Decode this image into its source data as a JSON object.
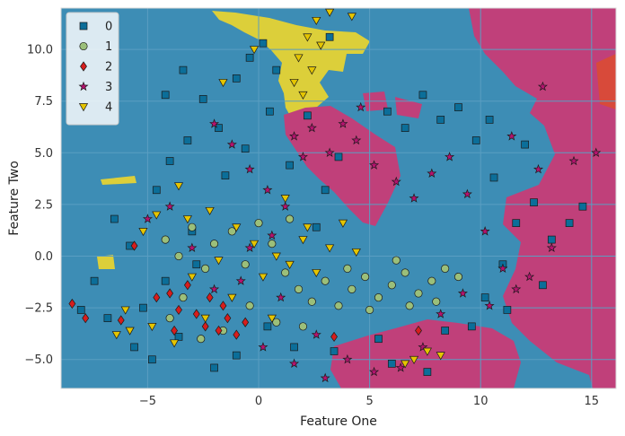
{
  "chart_data": {
    "type": "scatter",
    "title": "",
    "xlabel": "Feature One",
    "ylabel": "Feature Two",
    "xlim": [
      -8.9,
      16.1
    ],
    "ylim": [
      -6.4,
      12.0
    ],
    "xticks": [
      -5,
      0,
      5,
      10,
      15
    ],
    "yticks": [
      -5.0,
      -2.5,
      0.0,
      2.5,
      5.0,
      7.5,
      10.0
    ],
    "xtick_labels": [
      "−5",
      "0",
      "5",
      "10",
      "15"
    ],
    "ytick_labels": [
      "−5.0",
      "−2.5",
      "0.0",
      "2.5",
      "5.0",
      "7.5",
      "10.0"
    ],
    "grid": true,
    "legend_position": "top-left",
    "background_region_class": "0",
    "series": [
      {
        "name": "0",
        "marker": "square",
        "color": "#0b6e99",
        "points": [
          [
            -6.5,
            1.8
          ],
          [
            -5.8,
            0.5
          ],
          [
            -5.2,
            -2.5
          ],
          [
            -4.6,
            3.2
          ],
          [
            -4.0,
            4.6
          ],
          [
            -3.2,
            5.6
          ],
          [
            -2.5,
            7.6
          ],
          [
            -1.8,
            6.2
          ],
          [
            -1.0,
            8.6
          ],
          [
            -0.4,
            9.6
          ],
          [
            0.2,
            10.3
          ],
          [
            0.8,
            9.0
          ],
          [
            -0.6,
            5.2
          ],
          [
            0.5,
            7.0
          ],
          [
            -1.5,
            3.9
          ],
          [
            -2.8,
            -0.4
          ],
          [
            -3.6,
            -3.9
          ],
          [
            -4.8,
            -5.0
          ],
          [
            -2.0,
            -5.4
          ],
          [
            -6.8,
            -3.0
          ],
          [
            -7.4,
            -1.2
          ],
          [
            -8.0,
            -2.6
          ],
          [
            -5.6,
            -4.4
          ],
          [
            -3.0,
            1.2
          ],
          [
            -4.2,
            -1.2
          ],
          [
            1.4,
            4.4
          ],
          [
            2.2,
            6.8
          ],
          [
            3.0,
            3.2
          ],
          [
            2.6,
            1.4
          ],
          [
            3.6,
            4.8
          ],
          [
            5.8,
            7.0
          ],
          [
            6.6,
            6.2
          ],
          [
            7.4,
            7.8
          ],
          [
            8.2,
            6.6
          ],
          [
            9.0,
            7.2
          ],
          [
            9.8,
            5.6
          ],
          [
            10.6,
            3.8
          ],
          [
            11.6,
            1.6
          ],
          [
            12.4,
            2.6
          ],
          [
            13.2,
            0.8
          ],
          [
            14.0,
            1.6
          ],
          [
            14.6,
            2.4
          ],
          [
            12.8,
            -1.4
          ],
          [
            11.2,
            -2.6
          ],
          [
            10.2,
            -2.0
          ],
          [
            9.6,
            -3.4
          ],
          [
            8.4,
            -3.6
          ],
          [
            5.4,
            -4.0
          ],
          [
            3.4,
            -4.6
          ],
          [
            1.6,
            -4.4
          ],
          [
            0.4,
            -3.4
          ],
          [
            -1.0,
            -4.8
          ],
          [
            -3.4,
            9.0
          ],
          [
            -4.2,
            7.8
          ],
          [
            3.2,
            10.6
          ],
          [
            10.4,
            6.6
          ],
          [
            12.0,
            5.4
          ],
          [
            11.0,
            -0.4
          ],
          [
            6.0,
            -5.2
          ],
          [
            7.6,
            -5.6
          ]
        ]
      },
      {
        "name": "1",
        "marker": "circle",
        "color": "#9bbf7a",
        "points": [
          [
            -4.2,
            0.8
          ],
          [
            -3.6,
            0.0
          ],
          [
            -3.0,
            1.4
          ],
          [
            -2.4,
            -0.6
          ],
          [
            -2.0,
            0.6
          ],
          [
            -1.2,
            1.2
          ],
          [
            -0.6,
            -0.4
          ],
          [
            0.0,
            1.6
          ],
          [
            0.6,
            0.6
          ],
          [
            1.2,
            -0.8
          ],
          [
            1.8,
            -1.6
          ],
          [
            2.4,
            -2.2
          ],
          [
            3.0,
            -1.2
          ],
          [
            3.6,
            -2.4
          ],
          [
            4.2,
            -1.6
          ],
          [
            4.8,
            -1.0
          ],
          [
            5.4,
            -2.0
          ],
          [
            6.0,
            -1.4
          ],
          [
            6.6,
            -0.8
          ],
          [
            7.2,
            -1.8
          ],
          [
            7.8,
            -1.2
          ],
          [
            8.4,
            -0.6
          ],
          [
            9.0,
            -1.0
          ],
          [
            4.0,
            -0.6
          ],
          [
            5.0,
            -2.6
          ],
          [
            6.2,
            -0.2
          ],
          [
            -1.6,
            -3.6
          ],
          [
            -2.6,
            -4.0
          ],
          [
            -0.4,
            -2.4
          ],
          [
            0.8,
            -3.2
          ],
          [
            2.0,
            -3.4
          ],
          [
            1.4,
            1.8
          ],
          [
            -3.4,
            -2.0
          ],
          [
            -4.0,
            -3.0
          ],
          [
            6.8,
            -2.4
          ],
          [
            8.0,
            -2.2
          ]
        ]
      },
      {
        "name": "2",
        "marker": "diamond",
        "color": "#d61d1d",
        "points": [
          [
            -8.4,
            -2.3
          ],
          [
            -7.8,
            -3.0
          ],
          [
            -6.2,
            -3.1
          ],
          [
            -5.6,
            0.5
          ],
          [
            -4.6,
            -2.0
          ],
          [
            -4.0,
            -1.8
          ],
          [
            -3.6,
            -2.6
          ],
          [
            -3.2,
            -1.4
          ],
          [
            -2.8,
            -2.8
          ],
          [
            -2.2,
            -2.0
          ],
          [
            -1.8,
            -3.6
          ],
          [
            -1.4,
            -3.0
          ],
          [
            -1.0,
            -3.8
          ],
          [
            -0.6,
            -3.2
          ],
          [
            -2.4,
            -3.4
          ],
          [
            -3.8,
            -3.6
          ],
          [
            -1.6,
            -2.4
          ],
          [
            7.2,
            -3.6
          ],
          [
            3.4,
            -3.9
          ]
        ]
      },
      {
        "name": "3",
        "marker": "star",
        "color": "#b5126e",
        "points": [
          [
            -2.0,
            6.4
          ],
          [
            -1.2,
            5.4
          ],
          [
            -0.4,
            4.2
          ],
          [
            0.4,
            3.2
          ],
          [
            1.2,
            2.4
          ],
          [
            0.6,
            1.0
          ],
          [
            -0.4,
            0.4
          ],
          [
            1.6,
            5.8
          ],
          [
            2.4,
            6.2
          ],
          [
            2.0,
            4.8
          ],
          [
            3.2,
            5.0
          ],
          [
            3.8,
            6.4
          ],
          [
            4.4,
            5.6
          ],
          [
            5.2,
            4.4
          ],
          [
            6.2,
            3.6
          ],
          [
            7.0,
            2.8
          ],
          [
            7.8,
            4.0
          ],
          [
            8.6,
            4.8
          ],
          [
            9.4,
            3.0
          ],
          [
            10.2,
            1.2
          ],
          [
            11.0,
            -0.6
          ],
          [
            11.6,
            -1.6
          ],
          [
            10.4,
            -2.4
          ],
          [
            9.2,
            -1.8
          ],
          [
            8.2,
            -2.8
          ],
          [
            7.4,
            -4.4
          ],
          [
            6.4,
            -5.4
          ],
          [
            5.2,
            -5.6
          ],
          [
            4.0,
            -5.0
          ],
          [
            3.0,
            -5.9
          ],
          [
            1.6,
            -5.2
          ],
          [
            0.2,
            -4.4
          ],
          [
            -0.8,
            -1.2
          ],
          [
            -2.0,
            -1.6
          ],
          [
            -3.0,
            0.4
          ],
          [
            -4.0,
            2.4
          ],
          [
            -5.0,
            1.8
          ],
          [
            2.6,
            -3.8
          ],
          [
            1.0,
            -2.0
          ],
          [
            12.2,
            -1.0
          ],
          [
            13.2,
            0.4
          ],
          [
            11.4,
            5.8
          ],
          [
            12.6,
            4.2
          ],
          [
            14.2,
            4.6
          ],
          [
            15.2,
            5.0
          ],
          [
            12.8,
            8.2
          ],
          [
            4.6,
            7.2
          ]
        ]
      },
      {
        "name": "4",
        "marker": "triangle-down",
        "color": "#e5c500",
        "points": [
          [
            2.6,
            11.4
          ],
          [
            3.2,
            11.8
          ],
          [
            4.2,
            11.6
          ],
          [
            2.2,
            10.6
          ],
          [
            2.8,
            10.2
          ],
          [
            1.8,
            9.6
          ],
          [
            2.4,
            9.0
          ],
          [
            1.6,
            8.4
          ],
          [
            2.0,
            7.8
          ],
          [
            -1.6,
            8.4
          ],
          [
            -0.2,
            10.0
          ],
          [
            -3.6,
            3.4
          ],
          [
            -4.6,
            2.0
          ],
          [
            -5.2,
            1.2
          ],
          [
            -3.2,
            1.8
          ],
          [
            -2.2,
            2.2
          ],
          [
            -1.0,
            1.4
          ],
          [
            -0.2,
            0.6
          ],
          [
            0.8,
            0.0
          ],
          [
            1.4,
            -0.4
          ],
          [
            2.0,
            0.8
          ],
          [
            2.6,
            -0.8
          ],
          [
            3.2,
            0.4
          ],
          [
            3.8,
            1.6
          ],
          [
            4.4,
            0.2
          ],
          [
            -3.0,
            -1.0
          ],
          [
            -2.4,
            -3.0
          ],
          [
            -3.8,
            -4.2
          ],
          [
            -4.8,
            -3.4
          ],
          [
            -5.8,
            -3.6
          ],
          [
            -1.2,
            -2.0
          ],
          [
            0.2,
            -1.0
          ],
          [
            0.6,
            -3.0
          ],
          [
            1.2,
            2.8
          ],
          [
            2.2,
            1.4
          ],
          [
            -6.4,
            -3.8
          ],
          [
            7.0,
            -5.0
          ],
          [
            7.6,
            -4.6
          ],
          [
            8.2,
            -4.8
          ],
          [
            6.6,
            -5.2
          ],
          [
            -6.0,
            -2.6
          ],
          [
            -1.8,
            -0.2
          ]
        ]
      }
    ]
  }
}
